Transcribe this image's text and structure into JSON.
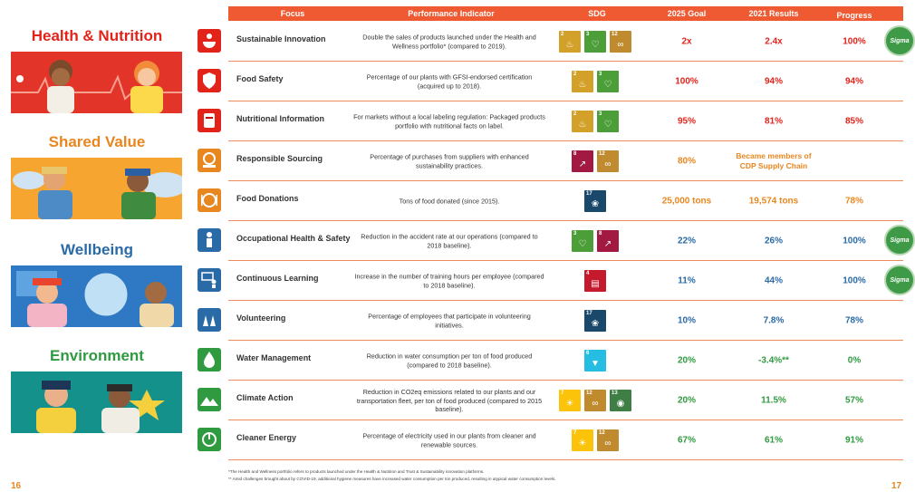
{
  "page_numbers": {
    "left": "16",
    "right": "17"
  },
  "sections": [
    {
      "title": "Health & Nutrition",
      "color": "#e2231a"
    },
    {
      "title": "Shared Value",
      "color": "#e8861f"
    },
    {
      "title": "Wellbeing",
      "color": "#2a6aa6"
    },
    {
      "title": "Environment",
      "color": "#2f9a3f"
    }
  ],
  "header": {
    "focus": "Focus",
    "indicator": "Performance Indicator",
    "sdg": "SDG",
    "goal": "2025 Goal",
    "results": "2021 Results",
    "progress": "Progress"
  },
  "badge_text": "Sigma",
  "rows": [
    {
      "focus": "Sustainable Innovation",
      "indicator": "Double the sales of products launched under the Health and Wellness portfolio* (compared to 2019).",
      "sdgs": [
        2,
        3,
        12
      ],
      "goal": "2x",
      "result": "2.4x",
      "progress": "100%",
      "badge": true,
      "color": "red",
      "icon": "bowl-icon"
    },
    {
      "focus": "Food Safety",
      "indicator": "Percentage of our plants with GFSI-endorsed certification (acquired up to 2018).",
      "sdgs": [
        2,
        3
      ],
      "goal": "100%",
      "result": "94%",
      "progress": "94%",
      "badge": false,
      "color": "red",
      "icon": "shield-check-icon"
    },
    {
      "focus": "Nutritional Information",
      "indicator": "For markets without a local labeling regulation: Packaged products portfolio with nutritional facts on label.",
      "sdgs": [
        2,
        3
      ],
      "goal": "95%",
      "result": "81%",
      "progress": "85%",
      "badge": false,
      "color": "red",
      "icon": "label-icon"
    },
    {
      "focus": "Responsible Sourcing",
      "indicator": "Percentage of purchases from suppliers with enhanced sustainability practices.",
      "sdgs": [
        8,
        12
      ],
      "goal": "80%",
      "result": "Became members of CDP Supply Chain",
      "progress": "",
      "badge": false,
      "color": "orange",
      "icon": "globe-hand-icon"
    },
    {
      "focus": "Food Donations",
      "indicator": "Tons of food donated (since 2015).",
      "sdgs": [
        17
      ],
      "goal": "25,000 tons",
      "result": "19,574 tons",
      "progress": "78%",
      "badge": false,
      "color": "orange",
      "icon": "plate-icon"
    },
    {
      "focus": "Occupational Health & Safety",
      "indicator": "Reduction in the accident rate at our operations (compared to 2018 baseline).",
      "sdgs": [
        3,
        8
      ],
      "goal": "22%",
      "result": "26%",
      "progress": "100%",
      "badge": true,
      "color": "blue",
      "icon": "worker-icon"
    },
    {
      "focus": "Continuous Learning",
      "indicator": "Increase in the number of training hours per employee (compared to 2018 baseline).",
      "sdgs": [
        4
      ],
      "goal": "11%",
      "result": "44%",
      "progress": "100%",
      "badge": true,
      "color": "blue",
      "icon": "teacher-icon"
    },
    {
      "focus": "Volunteering",
      "indicator": "Percentage of employees that participate in volunteering initiatives.",
      "sdgs": [
        17
      ],
      "goal": "10%",
      "result": "7.8%",
      "progress": "78%",
      "badge": false,
      "color": "blue",
      "icon": "hands-icon"
    },
    {
      "focus": "Water Management",
      "indicator": "Reduction in water consumption per ton of food produced (compared to 2018 baseline).",
      "sdgs": [
        6
      ],
      "goal": "20%",
      "result": "-3.4%**",
      "progress": "0%",
      "badge": false,
      "color": "green",
      "icon": "water-icon"
    },
    {
      "focus": "Climate Action",
      "indicator": "Reduction in CO2eq emissions related to our plants and our transportation fleet, per ton of food produced (compared to 2015 baseline).",
      "sdgs": [
        7,
        12,
        13
      ],
      "goal": "20%",
      "result": "11.5%",
      "progress": "57%",
      "badge": false,
      "color": "green",
      "icon": "mountain-icon"
    },
    {
      "focus": "Cleaner Energy",
      "indicator": "Percentage of electricity used in our plants from cleaner and renewable sources.",
      "sdgs": [
        7,
        12
      ],
      "goal": "67%",
      "result": "61%",
      "progress": "91%",
      "badge": false,
      "color": "green",
      "icon": "energy-icon"
    }
  ],
  "sdg_colors": {
    "2": "#d3a029",
    "3": "#4c9f38",
    "4": "#c5192d",
    "6": "#26bde2",
    "7": "#fcc30b",
    "8": "#a21942",
    "12": "#bf8b2e",
    "13": "#3f7e44",
    "17": "#19486a"
  },
  "accent_colors": {
    "red": "#e2231a",
    "orange": "#e8861f",
    "blue": "#2a6aa6",
    "green": "#2f9a3f"
  },
  "footnotes": [
    "*The Health and Wellness portfolio refers to products launched under the Health & Nutrition and Trust & Sustainability innovation platforms.",
    "** Amid challenges brought about by COVID-19, additional hygiene measures have increased water consumption per ton produced, resulting in atypical water consumption levels."
  ]
}
